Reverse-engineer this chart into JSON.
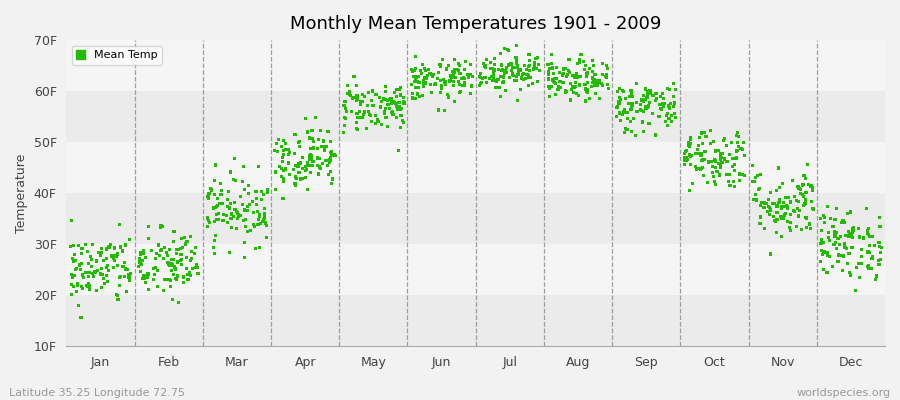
{
  "title": "Monthly Mean Temperatures 1901 - 2009",
  "ylabel": "Temperature",
  "subtitle_left": "Latitude 35.25 Longitude 72.75",
  "subtitle_right": "worldspecies.org",
  "ylim": [
    10,
    70
  ],
  "yticks": [
    10,
    20,
    30,
    40,
    50,
    60,
    70
  ],
  "ytick_labels": [
    "10F",
    "20F",
    "30F",
    "40F",
    "50F",
    "60F",
    "70F"
  ],
  "months": [
    "Jan",
    "Feb",
    "Mar",
    "Apr",
    "May",
    "Jun",
    "Jul",
    "Aug",
    "Sep",
    "Oct",
    "Nov",
    "Dec"
  ],
  "monthly_means_F": [
    25,
    26,
    37,
    47,
    57,
    62,
    64,
    62,
    57,
    47,
    38,
    30
  ],
  "monthly_stds_F": [
    3.5,
    3.5,
    3.5,
    3.0,
    2.5,
    2.0,
    2.0,
    2.0,
    2.5,
    3.0,
    3.5,
    3.5
  ],
  "dot_color": "#22bb00",
  "bg_color": "#f2f2f2",
  "band_colors": [
    "#ebebeb",
    "#f5f5f5"
  ],
  "legend_label": "Mean Temp",
  "years": 109,
  "seed": 42,
  "figsize": [
    9.0,
    4.0
  ],
  "dpi": 100
}
